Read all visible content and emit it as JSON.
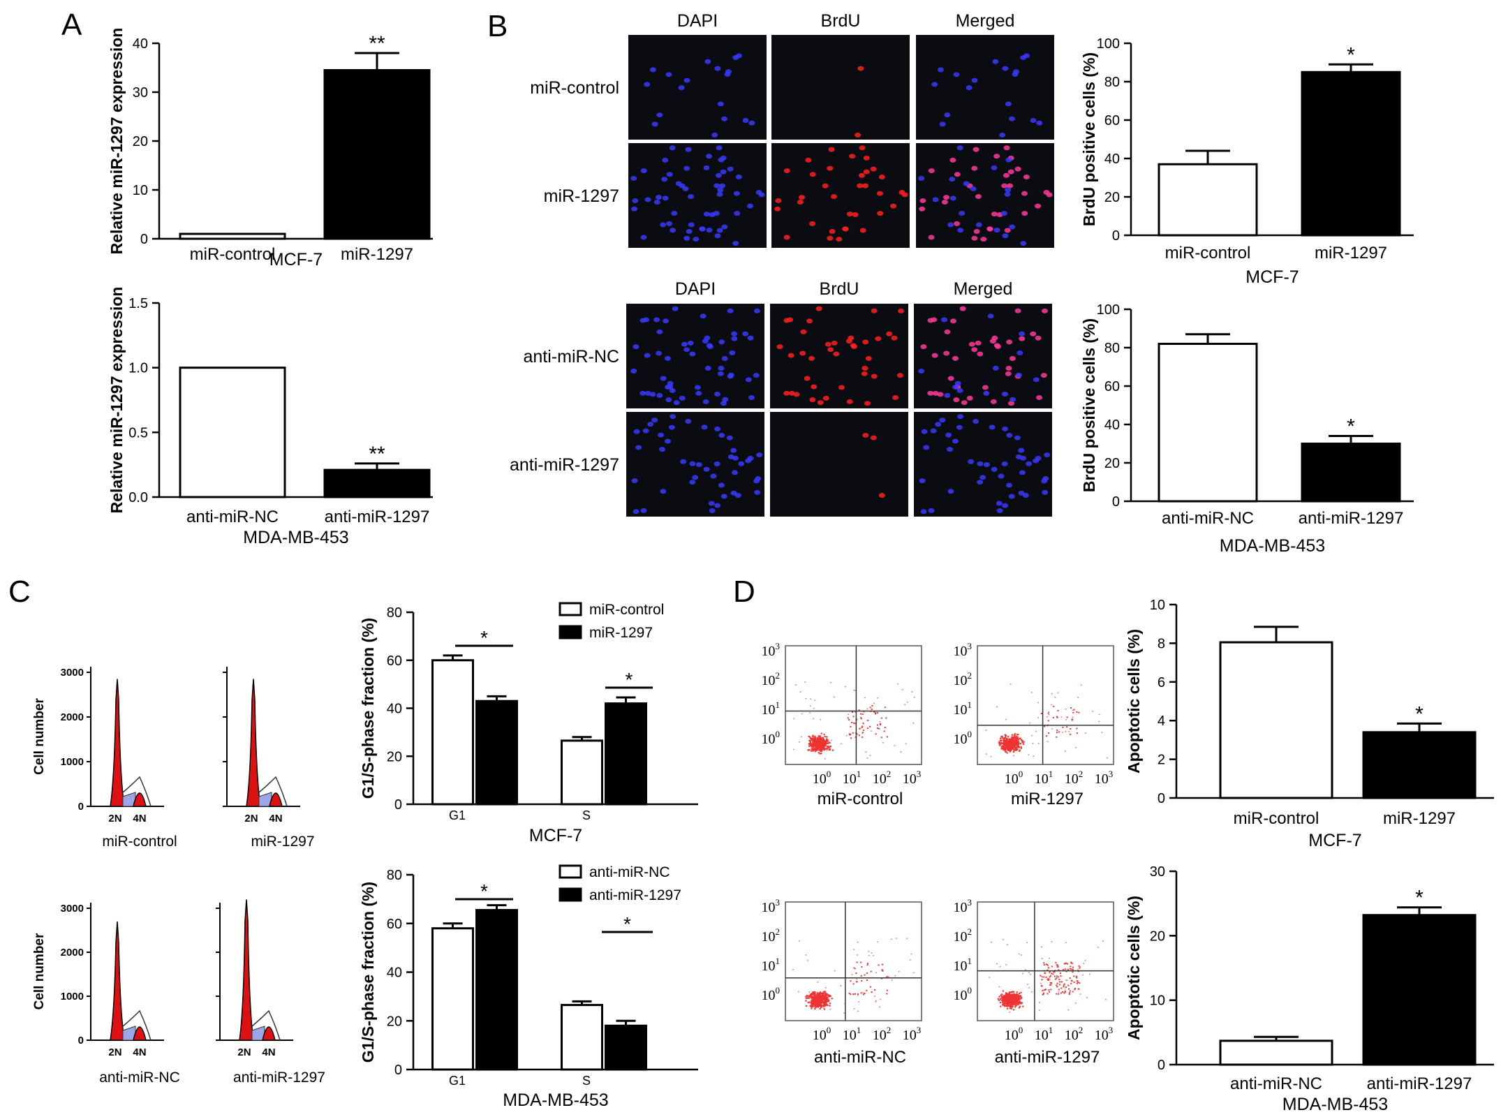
{
  "panels": {
    "A": "A",
    "B": "B",
    "C": "C",
    "D": "D"
  },
  "micro": {
    "channels": [
      "DAPI",
      "BrdU",
      "Merged"
    ],
    "top_rows": [
      "miR-control",
      "miR-1297"
    ],
    "bottom_rows": [
      "anti-miR-NC",
      "anti-miR-1297"
    ]
  },
  "flow": {
    "labels": [
      "miR-control",
      "miR-1297",
      "anti-miR-NC",
      "anti-miR-1297"
    ],
    "ylabel": "Cell number",
    "yticks": [
      "0",
      "1000",
      "2000",
      "3000"
    ],
    "xticks": [
      "2N",
      "4N"
    ]
  },
  "scatter": {
    "labels": [
      "miR-control",
      "miR-1297",
      "anti-miR-NC",
      "anti-miR-1297"
    ],
    "ticks": [
      "10",
      "0",
      "1",
      "2",
      "3"
    ]
  },
  "colors": {
    "bar_dark": "#000000",
    "bar_open": "#ffffff",
    "micro_bg": "#0b0b12",
    "dapi": "#3a3aff",
    "brdu": "#ff2020",
    "merged": "#ff3a9a",
    "flow_red": "#dd1111",
    "scatter_red": "#ee3333"
  },
  "chart_data": [
    {
      "id": "A1",
      "type": "bar",
      "ylabel": "Relative miR-1297 expression",
      "xlabel": "MCF-7",
      "categories": [
        "miR-control",
        "miR-1297"
      ],
      "values": [
        1.0,
        34.5
      ],
      "errors": [
        0,
        3.5
      ],
      "ylim": [
        0,
        40
      ],
      "yticks": [
        "0",
        "10",
        "20",
        "30",
        "40"
      ],
      "sig": [
        "",
        "**"
      ]
    },
    {
      "id": "A2",
      "type": "bar",
      "ylabel": "Relative miR-1297 expression",
      "xlabel": "MDA-MB-453",
      "categories": [
        "anti-miR-NC",
        "anti-miR-1297"
      ],
      "values": [
        1.0,
        0.21
      ],
      "errors": [
        0,
        0.05
      ],
      "ylim": [
        0,
        1.5
      ],
      "yticks": [
        "0.0",
        "0.5",
        "1.0",
        "1.5"
      ],
      "sig": [
        "",
        "**"
      ]
    },
    {
      "id": "B1",
      "type": "bar",
      "ylabel": "BrdU positive cells (%)",
      "xlabel": "MCF-7",
      "categories": [
        "miR-control",
        "miR-1297"
      ],
      "values": [
        37,
        85
      ],
      "errors": [
        7,
        4
      ],
      "ylim": [
        0,
        100
      ],
      "yticks": [
        "0",
        "20",
        "40",
        "60",
        "80",
        "100"
      ],
      "sig": [
        "",
        "*"
      ]
    },
    {
      "id": "B2",
      "type": "bar",
      "ylabel": "BrdU positive cells (%)",
      "xlabel": "MDA-MB-453",
      "categories": [
        "anti-miR-NC",
        "anti-miR-1297"
      ],
      "values": [
        82,
        30
      ],
      "errors": [
        5,
        4
      ],
      "ylim": [
        0,
        100
      ],
      "yticks": [
        "0",
        "20",
        "40",
        "60",
        "80",
        "100"
      ],
      "sig": [
        "",
        "*"
      ]
    },
    {
      "id": "C1",
      "type": "bar",
      "ylabel": "G1/S-phase fraction (%)",
      "xlabel": "MCF-7",
      "categories": [
        "G1",
        "S"
      ],
      "ylim": [
        0,
        80
      ],
      "yticks": [
        "0",
        "20",
        "40",
        "60",
        "80"
      ],
      "series": [
        {
          "name": "miR-control",
          "values": [
            60,
            26.5
          ],
          "errors": [
            2,
            1.5
          ]
        },
        {
          "name": "miR-1297",
          "values": [
            43,
            42
          ],
          "errors": [
            2,
            2.5
          ]
        }
      ],
      "sig": [
        "*",
        "*"
      ]
    },
    {
      "id": "C2",
      "type": "bar",
      "ylabel": "G1/S-phase fraction (%)",
      "xlabel": "MDA-MB-453",
      "categories": [
        "G1",
        "S"
      ],
      "ylim": [
        0,
        80
      ],
      "yticks": [
        "0",
        "20",
        "40",
        "60",
        "80"
      ],
      "series": [
        {
          "name": "anti-miR-NC",
          "values": [
            58,
            26.5
          ],
          "errors": [
            2,
            1.5
          ]
        },
        {
          "name": "anti-miR-1297",
          "values": [
            65.5,
            18
          ],
          "errors": [
            2,
            2
          ]
        }
      ],
      "sig": [
        "*",
        "*"
      ]
    },
    {
      "id": "D1",
      "type": "bar",
      "ylabel": "Apoptotic cells (%)",
      "xlabel": "MCF-7",
      "categories": [
        "miR-control",
        "miR-1297"
      ],
      "values": [
        8.05,
        3.4
      ],
      "errors": [
        0.8,
        0.45
      ],
      "ylim": [
        0,
        10
      ],
      "yticks": [
        "0",
        "2",
        "4",
        "6",
        "8",
        "10"
      ],
      "sig": [
        "",
        "*"
      ]
    },
    {
      "id": "D2",
      "type": "bar",
      "ylabel": "Apoptotic cells (%)",
      "xlabel": "MDA-MB-453",
      "categories": [
        "anti-miR-NC",
        "anti-miR-1297"
      ],
      "values": [
        3.7,
        23.2
      ],
      "errors": [
        0.6,
        1.2
      ],
      "ylim": [
        0,
        30
      ],
      "yticks": [
        "0",
        "10",
        "20",
        "30"
      ],
      "sig": [
        "",
        "*"
      ]
    }
  ]
}
